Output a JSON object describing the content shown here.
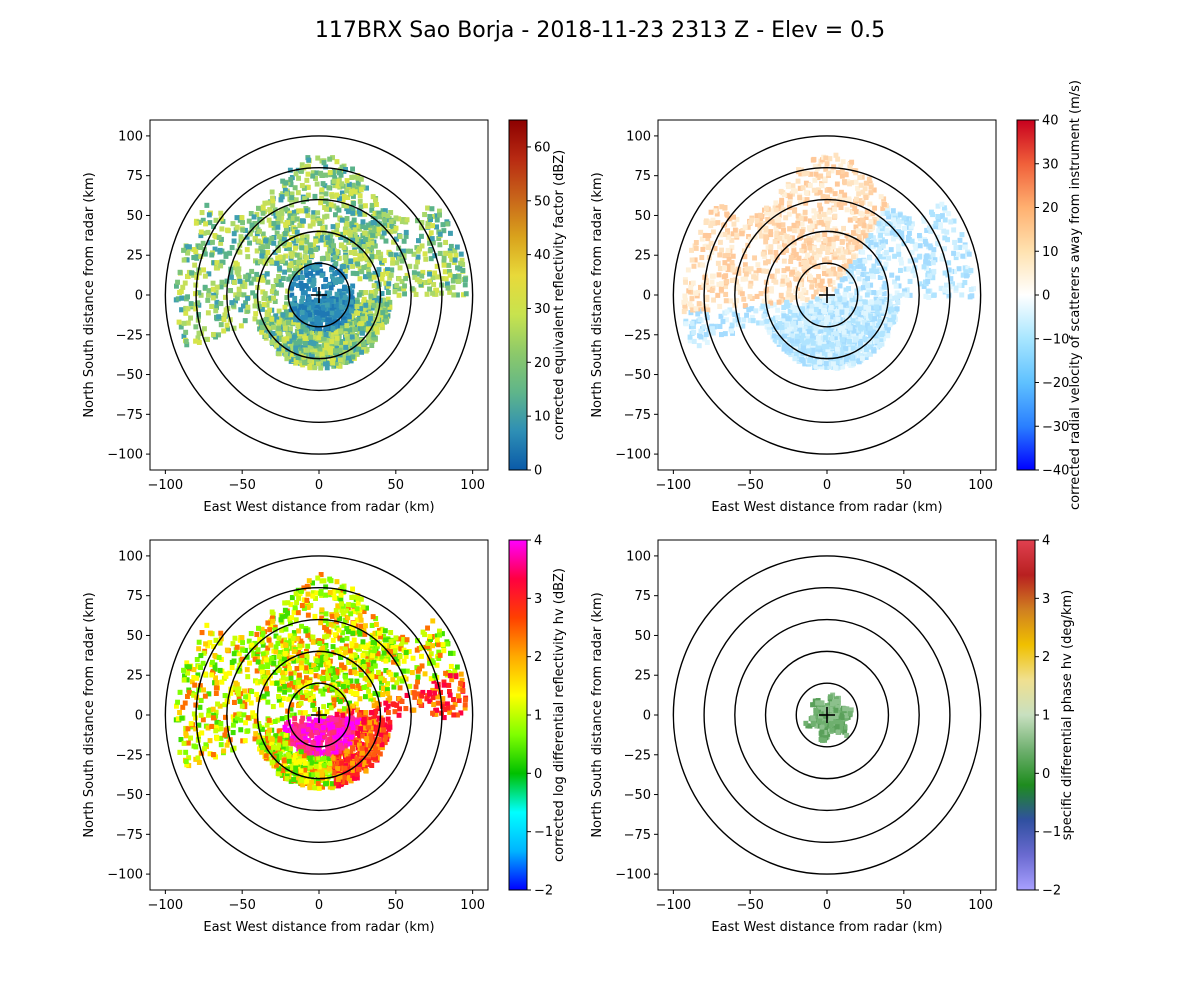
{
  "figure": {
    "title": "117BRX Sao Borja - 2018-11-23 2313 Z -  Elev = 0.5"
  },
  "chart_data": [
    {
      "type": "heatmap",
      "panel": "top-left",
      "field": "reflectivity",
      "xlabel": "East West distance from radar (km)",
      "ylabel": "North South distance from radar (km)",
      "xlim": [
        -110,
        110
      ],
      "ylim": [
        -110,
        110
      ],
      "xticks": [
        -100,
        -50,
        0,
        50,
        100
      ],
      "yticks": [
        -100,
        -75,
        -50,
        -25,
        0,
        25,
        50,
        75,
        100
      ],
      "range_rings_km": [
        20,
        40,
        60,
        80,
        100
      ],
      "colorbar": {
        "label": "corrected equivalent reflectivity factor (dBZ)",
        "vmin": 0,
        "vmax": 65,
        "ticks": [
          0,
          10,
          20,
          30,
          40,
          50,
          60
        ],
        "colors": [
          "#0a5aa8",
          "#2e8fb5",
          "#5fb58a",
          "#8cc96a",
          "#c8e34e",
          "#e8d93a",
          "#d9a21c",
          "#c8641a",
          "#b82a12",
          "#8c0000"
        ]
      }
    },
    {
      "type": "heatmap",
      "panel": "top-right",
      "field": "velocity",
      "xlabel": "East West distance from radar (km)",
      "ylabel": "North South distance from radar (km)",
      "xlim": [
        -110,
        110
      ],
      "ylim": [
        -110,
        110
      ],
      "xticks": [
        -100,
        -50,
        0,
        50,
        100
      ],
      "yticks": [
        -100,
        -75,
        -50,
        -25,
        0,
        25,
        50,
        75,
        100
      ],
      "range_rings_km": [
        20,
        40,
        60,
        80,
        100
      ],
      "colorbar": {
        "label": "corrected radial velocity of scatterers away from instrument (m/s)",
        "vmin": -40,
        "vmax": 40,
        "ticks": [
          -40,
          -30,
          -20,
          -10,
          0,
          10,
          20,
          30,
          40
        ],
        "colors": [
          "#0000ff",
          "#2a7fff",
          "#5fc1ff",
          "#a8e6ff",
          "#ffffff",
          "#ffe2b0",
          "#ffb070",
          "#f0603a",
          "#c8001e"
        ]
      }
    },
    {
      "type": "heatmap",
      "panel": "bottom-left",
      "field": "differential_reflectivity",
      "xlabel": "East West distance from radar (km)",
      "ylabel": "North South distance from radar (km)",
      "xlim": [
        -110,
        110
      ],
      "ylim": [
        -110,
        110
      ],
      "xticks": [
        -100,
        -50,
        0,
        50,
        100
      ],
      "yticks": [
        -100,
        -75,
        -50,
        -25,
        0,
        25,
        50,
        75,
        100
      ],
      "range_rings_km": [
        20,
        40,
        60,
        80,
        100
      ],
      "colorbar": {
        "label": "corrected log differential reflectivity hv (dBZ)",
        "vmin": -2,
        "vmax": 4,
        "ticks": [
          -2,
          -1,
          0,
          1,
          2,
          3,
          4
        ],
        "colors": [
          "#0000ff",
          "#00b4ff",
          "#00ffff",
          "#00c000",
          "#80ff00",
          "#ffff00",
          "#ffaa00",
          "#ff4000",
          "#ff0040",
          "#ff00ff"
        ]
      }
    },
    {
      "type": "heatmap",
      "panel": "bottom-right",
      "field": "specific_differential_phase",
      "xlabel": "East West distance from radar (km)",
      "ylabel": "North South distance from radar (km)",
      "xlim": [
        -110,
        110
      ],
      "ylim": [
        -110,
        110
      ],
      "xticks": [
        -100,
        -50,
        0,
        50,
        100
      ],
      "yticks": [
        -100,
        -75,
        -50,
        -25,
        0,
        25,
        50,
        75,
        100
      ],
      "range_rings_km": [
        20,
        40,
        60,
        80,
        100
      ],
      "colorbar": {
        "label": "specific differential phase hv (deg/km)",
        "vmin": -2,
        "vmax": 4,
        "ticks": [
          -2,
          -1,
          0,
          1,
          2,
          3,
          4
        ],
        "colors": [
          "#a8a0ff",
          "#6a6ad0",
          "#3050a0",
          "#1e8c1e",
          "#6fb06f",
          "#c8e0c0",
          "#f0e090",
          "#f0c000",
          "#d08020",
          "#b82020",
          "#e04050"
        ]
      }
    }
  ]
}
